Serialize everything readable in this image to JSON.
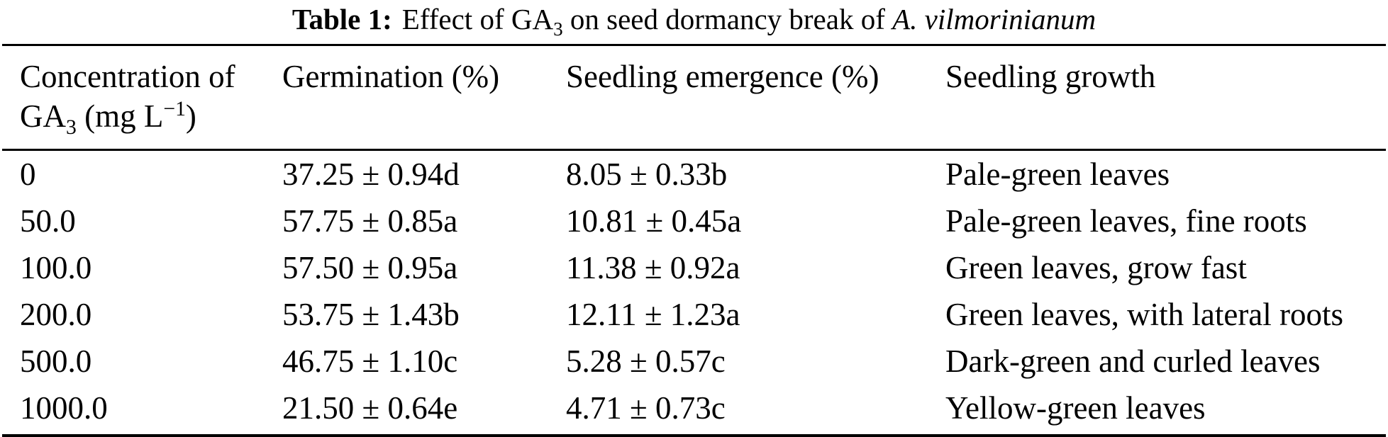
{
  "caption": {
    "label": "Table 1:",
    "text_1": "Effect of GA",
    "text_1_sub": "3",
    "text_2": " on seed dormancy break of ",
    "species": "A. vilmorinianum"
  },
  "table": {
    "header": {
      "col1_line1": "Concentration of",
      "col1_line2_a": "GA",
      "col1_line2_sub": "3",
      "col1_line2_b": " (mg L",
      "col1_line2_sup": "−1",
      "col1_line2_c": ")",
      "col2": "Germination (%)",
      "col3": "Seedling emergence (%)",
      "col4": "Seedling growth"
    },
    "rows": [
      {
        "concentration": "0",
        "germination": "37.25 ± 0.94d",
        "emergence": "8.05 ± 0.33b",
        "growth": "Pale-green leaves"
      },
      {
        "concentration": "50.0",
        "germination": "57.75 ± 0.85a",
        "emergence": "10.81 ± 0.45a",
        "growth": "Pale-green leaves, fine roots"
      },
      {
        "concentration": "100.0",
        "germination": "57.50 ± 0.95a",
        "emergence": "11.38 ± 0.92a",
        "growth": "Green leaves, grow fast"
      },
      {
        "concentration": "200.0",
        "germination": "53.75 ± 1.43b",
        "emergence": "12.11 ± 1.23a",
        "growth": "Green leaves, with lateral roots"
      },
      {
        "concentration": "500.0",
        "germination": "46.75 ± 1.10c",
        "emergence": "5.28 ± 0.57c",
        "growth": "Dark-green and curled leaves"
      },
      {
        "concentration": "1000.0",
        "germination": "21.50 ± 0.64e",
        "emergence": "4.71 ± 0.73c",
        "growth": "Yellow-green leaves"
      }
    ]
  },
  "colors": {
    "text": "#000000",
    "background": "#ffffff",
    "rule": "#000000"
  }
}
